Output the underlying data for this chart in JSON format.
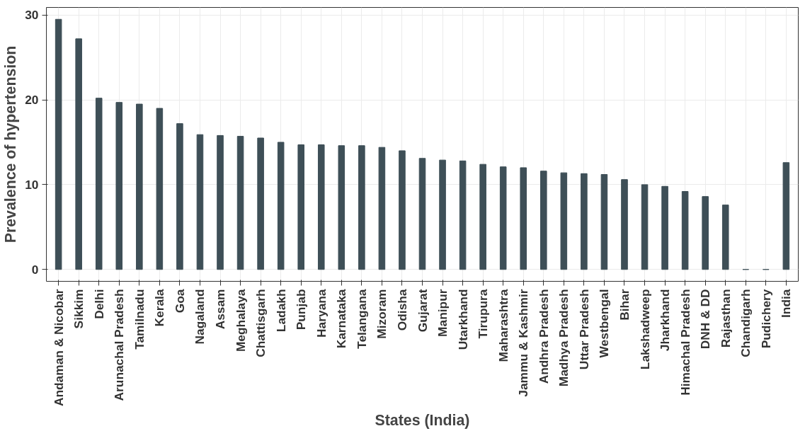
{
  "chart_data": {
    "type": "bar",
    "xlabel": "States (India)",
    "ylabel": "Prevalence of hypertension",
    "categories": [
      "Andaman & Nicobar",
      "Sikkim",
      "Delhi",
      "Arunachal Pradesh",
      "Tamilnadu",
      "Kerala",
      "Goa",
      "Nagaland",
      "Assam",
      "Meghalaya",
      "Chattisgarh",
      "Ladakh",
      "Punjab",
      "Haryana",
      "Karnataka",
      "Telangana",
      "Mizoram",
      "Odisha",
      "Gujarat",
      "Manipur",
      "Utarkhand",
      "Tirupura",
      "Maharashtra",
      "Jammu & Kashmir",
      "Andhra Pradesh",
      "Madhya Pradesh",
      "Uttar Pradesh",
      "Westbengal",
      "Bihar",
      "Lakshadweep",
      "Jharkhand",
      "Himachal Pradesh",
      "DNH & DD",
      "Rajasthan",
      "Chandigarh",
      "Pudichery",
      "India"
    ],
    "values": [
      29.5,
      27.2,
      20.2,
      19.7,
      19.5,
      19.0,
      17.2,
      15.9,
      15.8,
      15.7,
      15.5,
      15.0,
      14.7,
      14.7,
      14.6,
      14.6,
      14.4,
      14.0,
      13.1,
      12.9,
      12.8,
      12.4,
      12.1,
      12.0,
      11.6,
      11.4,
      11.3,
      11.2,
      10.6,
      10.0,
      9.8,
      9.2,
      8.6,
      7.6,
      0,
      0,
      12.6
    ],
    "color": "#3e4f57",
    "ylim": [
      -1.4,
      30.9
    ],
    "yticks": [
      0,
      10,
      20,
      30
    ],
    "grid": true
  }
}
